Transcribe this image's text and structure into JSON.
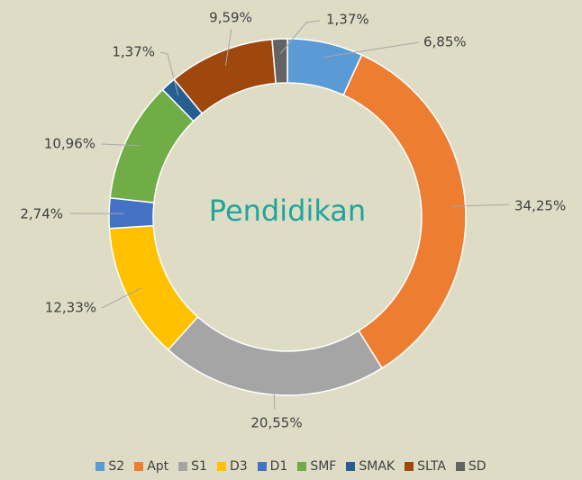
{
  "chart_data": {
    "type": "pie",
    "title": "Pendidikan",
    "categories": [
      "S2",
      "Apt",
      "S1",
      "D3",
      "D1",
      "SMF",
      "SMAK",
      "SLTA",
      "SD"
    ],
    "values": [
      6.85,
      34.25,
      20.55,
      12.33,
      2.74,
      10.96,
      1.37,
      9.59,
      1.37
    ],
    "value_labels": [
      "6,85%",
      "34,25%",
      "20,55%",
      "12,33%",
      "2,74%",
      "10,96%",
      "1,37%",
      "9,59%",
      "1,37%"
    ],
    "colors": [
      "#5b9bd5",
      "#ed7d31",
      "#a5a5a5",
      "#ffc000",
      "#4472c4",
      "#70ad47",
      "#255e91",
      "#9e480e",
      "#636363"
    ],
    "legend": "bottom"
  }
}
